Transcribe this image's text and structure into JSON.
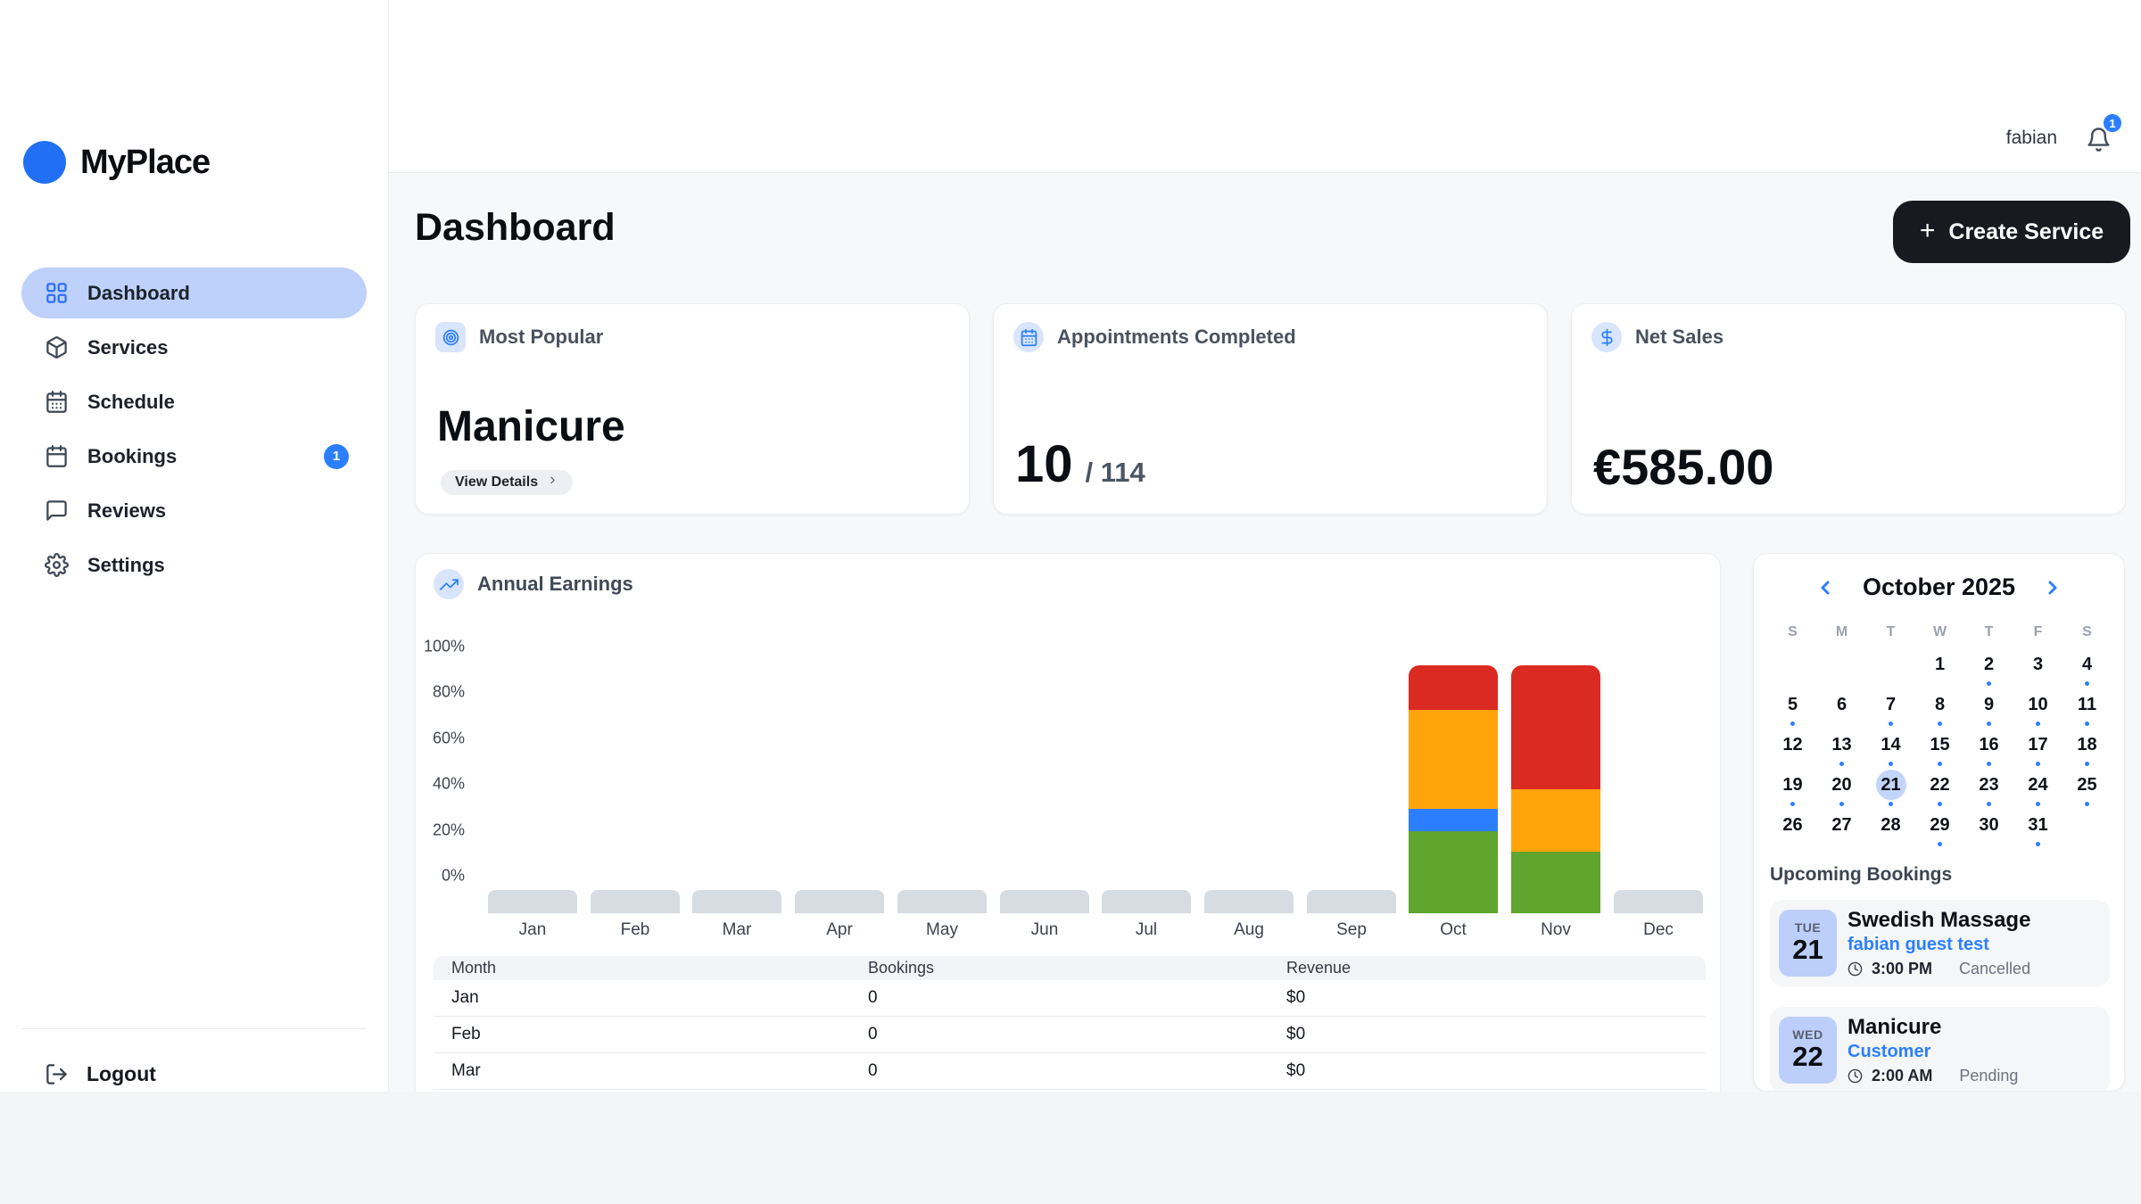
{
  "brand": {
    "name": "MyPlace"
  },
  "topbar": {
    "username": "fabian",
    "notification_count": "1"
  },
  "sidebar": {
    "items": [
      {
        "label": "Dashboard",
        "icon": "dashboard-grid",
        "active": true
      },
      {
        "label": "Services",
        "icon": "package"
      },
      {
        "label": "Schedule",
        "icon": "calendar-days"
      },
      {
        "label": "Bookings",
        "icon": "calendar",
        "badge": "1"
      },
      {
        "label": "Reviews",
        "icon": "chat"
      },
      {
        "label": "Settings",
        "icon": "gear"
      }
    ],
    "logout_label": "Logout"
  },
  "page": {
    "title": "Dashboard",
    "create_button": "Create Service",
    "create_plus": "+"
  },
  "stats": {
    "most_popular": {
      "title": "Most Popular",
      "value": "Manicure",
      "button": "View Details"
    },
    "appointments": {
      "title": "Appointments Completed",
      "completed": "10",
      "total": "/ 114"
    },
    "net_sales": {
      "title": "Net Sales",
      "value": "€585.00"
    }
  },
  "chart_data": {
    "type": "bar",
    "stacked": true,
    "title": "Annual Earnings",
    "categories": [
      "Jan",
      "Feb",
      "Mar",
      "Apr",
      "May",
      "Jun",
      "Jul",
      "Aug",
      "Sep",
      "Oct",
      "Nov",
      "Dec"
    ],
    "y_ticks": [
      "100%",
      "80%",
      "60%",
      "40%",
      "20%",
      "0%"
    ],
    "ylim": [
      0,
      100
    ],
    "grid": false,
    "legend": false,
    "series": [
      {
        "name": "green",
        "color": "#5fa52e",
        "values": [
          0,
          0,
          0,
          0,
          0,
          0,
          0,
          0,
          0,
          33,
          25,
          0
        ]
      },
      {
        "name": "blue",
        "color": "#2b7fff",
        "values": [
          0,
          0,
          0,
          0,
          0,
          0,
          0,
          0,
          0,
          9,
          0,
          0
        ]
      },
      {
        "name": "orange",
        "color": "#ffa40b",
        "values": [
          0,
          0,
          0,
          0,
          0,
          0,
          0,
          0,
          0,
          40,
          25,
          0
        ]
      },
      {
        "name": "red",
        "color": "#da2a22",
        "values": [
          0,
          0,
          0,
          0,
          0,
          0,
          0,
          0,
          0,
          18,
          50,
          0
        ]
      }
    ],
    "no_data_months": [
      "Jan",
      "Feb",
      "Mar",
      "Apr",
      "May",
      "Jun",
      "Jul",
      "Aug",
      "Sep",
      "Dec"
    ]
  },
  "table": {
    "columns": [
      "Month",
      "Bookings",
      "Revenue"
    ],
    "rows": [
      [
        "Jan",
        "0",
        "$0"
      ],
      [
        "Feb",
        "0",
        "$0"
      ],
      [
        "Mar",
        "0",
        "$0"
      ]
    ]
  },
  "calendar": {
    "title": "October 2025",
    "weekdays": [
      "S",
      "M",
      "T",
      "W",
      "T",
      "F",
      "S"
    ],
    "start_offset": 3,
    "day_count": 31,
    "selected_day": 21,
    "dot_days": [
      2,
      4,
      5,
      7,
      8,
      9,
      10,
      11,
      13,
      14,
      15,
      16,
      17,
      18,
      19,
      20,
      21,
      22,
      23,
      24,
      25,
      29,
      31
    ]
  },
  "bookings": {
    "title": "Upcoming Bookings",
    "items": [
      {
        "weekday": "TUE",
        "day": "21",
        "service": "Swedish Massage",
        "customer": "fabian guest test",
        "time": "3:00 PM",
        "status": "Cancelled"
      },
      {
        "weekday": "WED",
        "day": "22",
        "service": "Manicure",
        "customer": "Customer",
        "time": "2:00 AM",
        "status": "Pending"
      }
    ]
  },
  "colors": {
    "accent_blue": "#2b7fff",
    "active_pill": "#bdd1fb",
    "placeholder_bar": "#d7dce3",
    "dark_button": "#171a21",
    "selected_day_bg": "#c4d5fb",
    "badge_bg": "#bccffb"
  }
}
